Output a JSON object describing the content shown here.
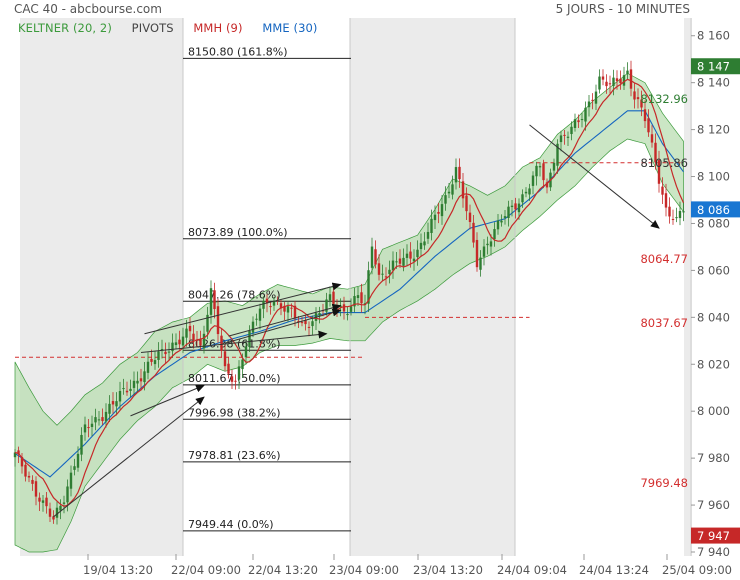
{
  "header": {
    "instrument": "CAC 40 - abcbourse.com",
    "timeframe": "5 JOURS - 10 MINUTES"
  },
  "legend": {
    "keltner": "KELTNER (20, 2)",
    "pivots": "PIVOTS",
    "mmh": "MMH (9)",
    "mme": "MME (30)"
  },
  "colors": {
    "keltner": "#3c9a3c",
    "keltner_fill": "#b9ddb1",
    "mmh": "#c62828",
    "mme": "#1565c0",
    "up_candle": "#2e7d32",
    "down_candle": "#c62828",
    "pivot": "#d32f2f",
    "last_price_bg": "#1976d2",
    "last_close_bg": "#c62828",
    "keltner_label_bg": "#2e7d32",
    "session_shade": "#ebebeb"
  },
  "chart_data": {
    "type": "candlestick",
    "title": "CAC 40 - abcbourse.com",
    "subtitle": "5 JOURS - 10 MINUTES",
    "ylim": [
      7940,
      8165
    ],
    "y_ticks": [
      "8 160",
      "8 140",
      "8 120",
      "8 100",
      "8 080",
      "8 060",
      "8 040",
      "8 020",
      "8 000",
      "7 980",
      "7 960",
      "7 940"
    ],
    "x_ticks": [
      "19/04 13:20",
      "22/04 09:00",
      "22/04 13:20",
      "23/04 09:00",
      "23/04 13:20",
      "24/04 09:04",
      "24/04 13:24",
      "25/04 09:00"
    ],
    "price_path": [
      [
        0,
        7981
      ],
      [
        4,
        7972
      ],
      [
        8,
        7960
      ],
      [
        11,
        7953
      ],
      [
        14,
        7964
      ],
      [
        17,
        7978
      ],
      [
        20,
        7992
      ],
      [
        25,
        7999
      ],
      [
        30,
        8006
      ],
      [
        35,
        8014
      ],
      [
        40,
        8022
      ],
      [
        45,
        8029
      ],
      [
        50,
        8033
      ],
      [
        53,
        8027
      ],
      [
        56,
        8052
      ],
      [
        58,
        8034
      ],
      [
        60,
        8016
      ],
      [
        63,
        8013
      ],
      [
        66,
        8030
      ],
      [
        70,
        8043
      ],
      [
        74,
        8048
      ],
      [
        78,
        8043
      ],
      [
        82,
        8036
      ],
      [
        86,
        8041
      ],
      [
        90,
        8047
      ],
      [
        94,
        8043
      ],
      [
        98,
        8049
      ],
      [
        100,
        8044
      ],
      [
        102,
        8071
      ],
      [
        104,
        8058
      ],
      [
        107,
        8061
      ],
      [
        111,
        8064
      ],
      [
        115,
        8069
      ],
      [
        119,
        8079
      ],
      [
        123,
        8091
      ],
      [
        126,
        8104
      ],
      [
        129,
        8085
      ],
      [
        132,
        8063
      ],
      [
        135,
        8073
      ],
      [
        140,
        8083
      ],
      [
        145,
        8092
      ],
      [
        150,
        8104
      ],
      [
        152,
        8094
      ],
      [
        155,
        8116
      ],
      [
        158,
        8118
      ],
      [
        161,
        8123
      ],
      [
        164,
        8132
      ],
      [
        167,
        8141
      ],
      [
        170,
        8138
      ],
      [
        172,
        8141
      ],
      [
        175,
        8145
      ],
      [
        177,
        8134
      ],
      [
        180,
        8124
      ],
      [
        183,
        8107
      ],
      [
        186,
        8086
      ],
      [
        189,
        8080
      ],
      [
        191,
        8086
      ]
    ],
    "keltner": {
      "name": "KELTNER (20, 2)",
      "points": [
        [
          0,
          8021,
          7943
        ],
        [
          4,
          8010,
          7940
        ],
        [
          8,
          8000,
          7940
        ],
        [
          12,
          7994,
          7941
        ],
        [
          16,
          8000,
          7953
        ],
        [
          20,
          8007,
          7968
        ],
        [
          25,
          8012,
          7978
        ],
        [
          30,
          8020,
          7988
        ],
        [
          35,
          8025,
          7996
        ],
        [
          40,
          8034,
          8002
        ],
        [
          45,
          8038,
          8010
        ],
        [
          50,
          8040,
          8014
        ],
        [
          55,
          8046,
          8020
        ],
        [
          60,
          8047,
          8017
        ],
        [
          65,
          8045,
          8019
        ],
        [
          70,
          8050,
          8025
        ],
        [
          75,
          8054,
          8028
        ],
        [
          80,
          8052,
          8028
        ],
        [
          85,
          8050,
          8029
        ],
        [
          90,
          8053,
          8031
        ],
        [
          95,
          8052,
          8030
        ],
        [
          100,
          8054,
          8030
        ],
        [
          105,
          8069,
          8038
        ],
        [
          110,
          8072,
          8043
        ],
        [
          115,
          8075,
          8047
        ],
        [
          120,
          8086,
          8052
        ],
        [
          125,
          8099,
          8058
        ],
        [
          130,
          8096,
          8063
        ],
        [
          135,
          8092,
          8066
        ],
        [
          140,
          8096,
          8070
        ],
        [
          145,
          8104,
          8077
        ],
        [
          150,
          8108,
          8083
        ],
        [
          155,
          8118,
          8090
        ],
        [
          160,
          8124,
          8096
        ],
        [
          165,
          8132,
          8104
        ],
        [
          170,
          8138,
          8111
        ],
        [
          175,
          8144,
          8116
        ],
        [
          180,
          8140,
          8114
        ],
        [
          185,
          8127,
          8097
        ],
        [
          191,
          8115,
          8085
        ]
      ]
    },
    "mmh": {
      "name": "MMH (9)"
    },
    "mme": {
      "name": "MME (30)",
      "points": [
        [
          0,
          7982
        ],
        [
          10,
          7972
        ],
        [
          20,
          7986
        ],
        [
          30,
          8002
        ],
        [
          40,
          8015
        ],
        [
          50,
          8025
        ],
        [
          60,
          8030
        ],
        [
          70,
          8034
        ],
        [
          80,
          8039
        ],
        [
          90,
          8042
        ],
        [
          100,
          8042
        ],
        [
          110,
          8052
        ],
        [
          120,
          8066
        ],
        [
          130,
          8078
        ],
        [
          140,
          8082
        ],
        [
          150,
          8094
        ],
        [
          160,
          8110
        ],
        [
          170,
          8122
        ],
        [
          175,
          8128
        ],
        [
          180,
          8128
        ],
        [
          185,
          8114
        ],
        [
          191,
          8102
        ]
      ]
    },
    "fibonacci": [
      {
        "value": 8150.8,
        "label": "8150.80  (161.8%)"
      },
      {
        "value": 8073.89,
        "label": "8073.89  (100.0%)"
      },
      {
        "value": 8047.26,
        "label": "8047.26  (78.6%)"
      },
      {
        "value": 8026.38,
        "label": "8026.38  (61.8%)"
      },
      {
        "value": 8011.67,
        "label": "8011.67  (50.0%)"
      },
      {
        "value": 7996.98,
        "label": "7996.98  (38.2%)"
      },
      {
        "value": 7978.81,
        "label": "7978.81  (23.6%)"
      },
      {
        "value": 7949.44,
        "label": "7949.44  (0.0%)"
      }
    ],
    "pivot_lines": [
      {
        "value": 8023,
        "from": 0,
        "to": 100
      },
      {
        "value": 8040,
        "from": 100,
        "to": 147
      },
      {
        "value": 8105.86,
        "from": 147,
        "to": 191
      }
    ],
    "price_labels": [
      {
        "value": 8132.96,
        "text": "8132.96",
        "color": "#2e7d32"
      },
      {
        "value": 8105.86,
        "text": "8105.86",
        "color": "#333333"
      },
      {
        "value": 8064.77,
        "text": "8064.77",
        "color": "#d32f2f"
      },
      {
        "value": 8037.67,
        "text": "8037.67",
        "color": "#d32f2f"
      },
      {
        "value": 7969.48,
        "text": "7969.48",
        "color": "#d32f2f"
      }
    ],
    "axis_boxes": [
      {
        "value": 8147,
        "text": "8 147",
        "bg": "#2e7d32"
      },
      {
        "value": 8086,
        "text": "8 086",
        "bg": "#1976d2"
      },
      {
        "value": 7947,
        "text": "7 947",
        "bg": "#c62828"
      }
    ],
    "arrows": [
      {
        "from": [
          11,
          7955
        ],
        "to": [
          54,
          8006
        ]
      },
      {
        "from": [
          33,
          7998
        ],
        "to": [
          54,
          8011
        ]
      },
      {
        "from": [
          36,
          8025
        ],
        "to": [
          89,
          8033
        ]
      },
      {
        "from": [
          37,
          8033
        ],
        "to": [
          93,
          8054
        ]
      },
      {
        "from": [
          60,
          8029
        ],
        "to": [
          93,
          8043
        ]
      },
      {
        "from": [
          61,
          8032
        ],
        "to": [
          93,
          8045
        ]
      },
      {
        "from": [
          147,
          8122
        ],
        "to": [
          184,
          8078
        ]
      }
    ]
  }
}
